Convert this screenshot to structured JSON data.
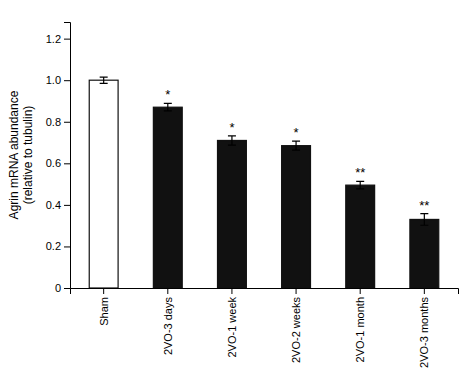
{
  "chart_data": {
    "type": "bar",
    "categories": [
      "Sham",
      "2VO-3 days",
      "2VO-1 week",
      "2VO-2 weeks",
      "2VO-1 month",
      "2VO-3 months"
    ],
    "values": [
      1.0,
      0.87,
      0.71,
      0.685,
      0.495,
      0.33
    ],
    "errors": [
      0.015,
      0.018,
      0.022,
      0.022,
      0.018,
      0.028
    ],
    "colors": [
      "#ffffff",
      "#111111",
      "#111111",
      "#111111",
      "#111111",
      "#111111"
    ],
    "significance": [
      null,
      "*",
      "*",
      "*",
      "**",
      "**"
    ],
    "y_label": "Agrin mRNA abundance\n(relative to tubulin)",
    "ylim": [
      0,
      1.28
    ],
    "yticks": [
      0,
      0.2,
      0.4,
      0.6,
      0.8,
      {
        "value": 1.0,
        "label": "1.0"
      },
      1.2
    ]
  }
}
